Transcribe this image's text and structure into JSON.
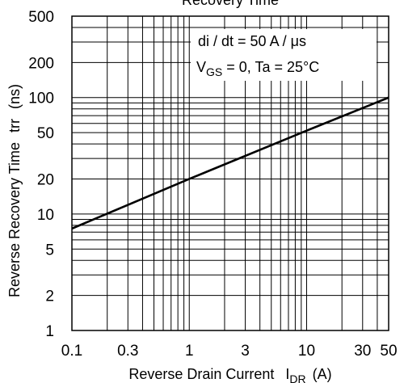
{
  "chart_data": {
    "type": "line",
    "title": "Recovery Time",
    "xlabel": "Reverse Drain Current",
    "xlabel_symbol": "I",
    "xlabel_sub": "DR",
    "xlabel_unit": "(A)",
    "ylabel": "Reverse Recovery Time",
    "ylabel_symbol": "trr",
    "ylabel_unit": "(ns)",
    "xscale": "log",
    "yscale": "log",
    "xlim": [
      0.1,
      50
    ],
    "ylim": [
      1,
      500
    ],
    "grid": true,
    "x_ticks": [
      {
        "value": 0.1,
        "label": "0.1"
      },
      {
        "value": 0.3,
        "label": "0.3"
      },
      {
        "value": 1,
        "label": "1"
      },
      {
        "value": 3,
        "label": "3"
      },
      {
        "value": 10,
        "label": "10"
      },
      {
        "value": 30,
        "label": "30"
      },
      {
        "value": 50,
        "label": "50"
      }
    ],
    "y_ticks": [
      {
        "value": 1,
        "label": "1"
      },
      {
        "value": 2,
        "label": "2"
      },
      {
        "value": 5,
        "label": "5"
      },
      {
        "value": 10,
        "label": "10"
      },
      {
        "value": 20,
        "label": "20"
      },
      {
        "value": 50,
        "label": "50"
      },
      {
        "value": 100,
        "label": "100"
      },
      {
        "value": 200,
        "label": "200"
      },
      {
        "value": 500,
        "label": "500"
      }
    ],
    "x_grid": [
      0.1,
      0.2,
      0.3,
      0.4,
      0.5,
      0.6,
      0.7,
      0.8,
      0.9,
      1,
      2,
      3,
      4,
      5,
      6,
      7,
      8,
      9,
      10,
      20,
      30,
      40,
      50
    ],
    "y_grid": [
      1,
      2,
      3,
      4,
      5,
      6,
      7,
      8,
      9,
      10,
      20,
      30,
      40,
      50,
      60,
      70,
      80,
      90,
      100,
      200,
      300,
      400,
      500
    ],
    "annotations": {
      "line1": "di / dt = 50 A / μs",
      "line2_symbol": "V",
      "line2_sub": "GS",
      "line2_rest": " = 0, Ta = 25°C"
    },
    "series": [
      {
        "x": [
          0.1,
          1,
          10,
          50
        ],
        "y": [
          7.5,
          20,
          52,
          100
        ]
      }
    ]
  }
}
